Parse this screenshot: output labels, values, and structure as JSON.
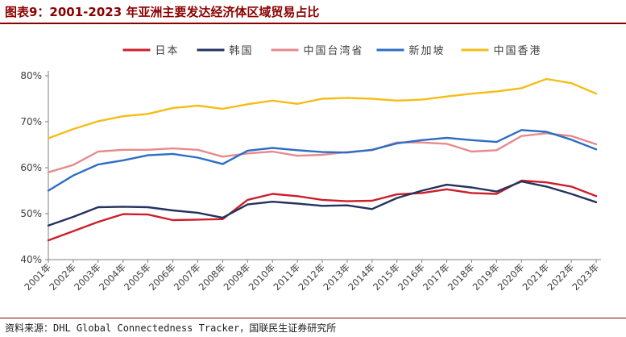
{
  "title": "图表9：2001-2023 年亚洲主要发达经济体区域贸易占比",
  "source": "资料来源：DHL Global Connectedness Tracker，国联民生证券研究所",
  "chart_data": {
    "type": "line",
    "x": [
      "2001年",
      "2002年",
      "2003年",
      "2004年",
      "2005年",
      "2006年",
      "2007年",
      "2008年",
      "2009年",
      "2010年",
      "2011年",
      "2012年",
      "2013年",
      "2014年",
      "2015年",
      "2016年",
      "2017年",
      "2018年",
      "2019年",
      "2020年",
      "2021年",
      "2022年",
      "2023年"
    ],
    "yticks": [
      "40%",
      "50%",
      "60%",
      "70%",
      "80%"
    ],
    "ylim": [
      40,
      80
    ],
    "grid": false,
    "legend_position": "top",
    "series": [
      {
        "name": "日本",
        "color": "#cc1f2b",
        "values": [
          44.2,
          46.2,
          48.2,
          49.9,
          49.8,
          48.6,
          48.7,
          48.8,
          53.0,
          54.3,
          53.8,
          53.0,
          52.7,
          52.8,
          54.2,
          54.5,
          55.3,
          54.5,
          54.3,
          57.2,
          56.8,
          55.9,
          53.8
        ]
      },
      {
        "name": "韩国",
        "color": "#24335e",
        "values": [
          47.4,
          49.3,
          51.4,
          51.5,
          51.4,
          50.7,
          50.2,
          49.1,
          52.0,
          52.6,
          52.2,
          51.7,
          51.8,
          51.0,
          53.4,
          55.0,
          56.3,
          55.7,
          54.8,
          57.0,
          55.9,
          54.3,
          52.5
        ]
      },
      {
        "name": "中国台湾省",
        "color": "#e8898c",
        "values": [
          59.0,
          60.6,
          63.5,
          63.9,
          63.9,
          64.2,
          63.9,
          62.4,
          63.1,
          63.5,
          62.6,
          62.8,
          63.4,
          63.8,
          65.5,
          65.5,
          65.2,
          63.5,
          63.8,
          66.9,
          67.5,
          66.9,
          65.1
        ]
      },
      {
        "name": "新加坡",
        "color": "#2c6ec4",
        "values": [
          55.0,
          58.3,
          60.7,
          61.6,
          62.7,
          63.0,
          62.2,
          60.8,
          63.7,
          64.3,
          63.8,
          63.4,
          63.3,
          63.9,
          65.3,
          66.0,
          66.5,
          66.0,
          65.6,
          68.2,
          67.8,
          66.1,
          64.0
        ]
      },
      {
        "name": "中国香港",
        "color": "#f6bd16",
        "values": [
          66.4,
          68.4,
          70.1,
          71.2,
          71.7,
          73.0,
          73.5,
          72.8,
          73.8,
          74.6,
          73.9,
          75.0,
          75.2,
          75.0,
          74.6,
          74.8,
          75.5,
          76.1,
          76.6,
          77.3,
          79.3,
          78.4,
          76.1
        ]
      }
    ]
  }
}
